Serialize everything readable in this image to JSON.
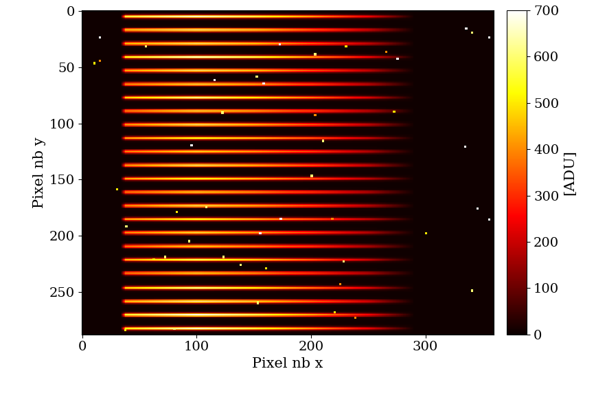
{
  "chart_data": {
    "type": "heatmap",
    "xlabel": "Pixel nb x",
    "ylabel": "Pixel nb y",
    "xlim": [
      -0.5,
      359.5
    ],
    "ylim": [
      287.5,
      -0.5
    ],
    "xticks": [
      0,
      100,
      200,
      300
    ],
    "yticks": [
      0,
      50,
      100,
      150,
      200,
      250
    ],
    "colorbar": {
      "label": "[ADU]",
      "range": [
        0,
        700
      ],
      "ticks": [
        0,
        100,
        200,
        300,
        400,
        500,
        600,
        700
      ]
    },
    "background": 8,
    "trace_x": [
      34,
      38,
      100,
      150,
      200,
      250,
      270,
      290
    ],
    "traces": [
      {
        "y": 5,
        "values": [
          0,
          550,
          650,
          560,
          420,
          230,
          120,
          0
        ]
      },
      {
        "y": 17,
        "values": [
          0,
          520,
          620,
          540,
          400,
          220,
          110,
          0
        ]
      },
      {
        "y": 29,
        "values": [
          0,
          500,
          600,
          520,
          380,
          210,
          110,
          0
        ]
      },
      {
        "y": 41,
        "values": [
          0,
          520,
          650,
          560,
          420,
          230,
          120,
          0
        ]
      },
      {
        "y": 53,
        "values": [
          0,
          480,
          600,
          520,
          380,
          210,
          100,
          0
        ]
      },
      {
        "y": 65,
        "values": [
          0,
          450,
          560,
          480,
          360,
          200,
          100,
          0
        ]
      },
      {
        "y": 77,
        "values": [
          0,
          470,
          600,
          500,
          380,
          210,
          100,
          0
        ]
      },
      {
        "y": 89,
        "values": [
          0,
          440,
          560,
          480,
          360,
          200,
          100,
          0
        ]
      },
      {
        "y": 101,
        "values": [
          0,
          460,
          600,
          500,
          380,
          210,
          100,
          0
        ]
      },
      {
        "y": 113,
        "values": [
          0,
          420,
          520,
          450,
          340,
          190,
          90,
          0
        ]
      },
      {
        "y": 125,
        "values": [
          0,
          430,
          540,
          460,
          350,
          190,
          90,
          0
        ]
      },
      {
        "y": 137,
        "values": [
          0,
          460,
          600,
          500,
          380,
          210,
          100,
          0
        ]
      },
      {
        "y": 149,
        "values": [
          0,
          420,
          520,
          440,
          330,
          180,
          90,
          0
        ]
      },
      {
        "y": 161,
        "values": [
          0,
          430,
          540,
          460,
          340,
          190,
          90,
          0
        ]
      },
      {
        "y": 173,
        "values": [
          0,
          450,
          580,
          490,
          370,
          200,
          100,
          0
        ]
      },
      {
        "y": 185,
        "values": [
          0,
          420,
          520,
          440,
          330,
          180,
          90,
          0
        ]
      },
      {
        "y": 197,
        "values": [
          0,
          440,
          560,
          470,
          350,
          190,
          90,
          0
        ]
      },
      {
        "y": 209,
        "values": [
          0,
          420,
          530,
          450,
          340,
          180,
          90,
          0
        ]
      },
      {
        "y": 221,
        "values": [
          0,
          440,
          560,
          470,
          350,
          190,
          90,
          0
        ]
      },
      {
        "y": 233,
        "values": [
          0,
          430,
          540,
          460,
          340,
          190,
          90,
          0
        ]
      },
      {
        "y": 246,
        "values": [
          0,
          480,
          600,
          510,
          380,
          210,
          100,
          0
        ]
      },
      {
        "y": 258,
        "values": [
          0,
          520,
          650,
          550,
          410,
          230,
          110,
          0
        ]
      },
      {
        "y": 270,
        "values": [
          0,
          540,
          680,
          570,
          430,
          240,
          120,
          0
        ]
      },
      {
        "y": 282,
        "values": [
          0,
          520,
          650,
          550,
          410,
          230,
          110,
          0
        ]
      }
    ],
    "hits": [
      [
        15,
        23,
        700
      ],
      [
        55,
        31,
        600
      ],
      [
        172,
        29,
        700
      ],
      [
        203,
        38,
        600
      ],
      [
        230,
        31,
        500
      ],
      [
        265,
        36,
        400
      ],
      [
        275,
        42,
        700
      ],
      [
        10,
        46,
        500
      ],
      [
        15,
        44,
        400
      ],
      [
        335,
        15,
        700
      ],
      [
        340,
        19,
        600
      ],
      [
        355,
        23,
        700
      ],
      [
        115,
        61,
        700
      ],
      [
        152,
        58,
        600
      ],
      [
        158,
        64,
        700
      ],
      [
        122,
        90,
        600
      ],
      [
        203,
        92,
        400
      ],
      [
        272,
        89,
        500
      ],
      [
        210,
        115,
        600
      ],
      [
        95,
        119,
        700
      ],
      [
        200,
        146,
        600
      ],
      [
        334,
        120,
        700
      ],
      [
        30,
        158,
        500
      ],
      [
        108,
        174,
        600
      ],
      [
        82,
        178,
        500
      ],
      [
        173,
        184,
        700
      ],
      [
        218,
        184,
        400
      ],
      [
        345,
        175,
        700
      ],
      [
        355,
        185,
        700
      ],
      [
        38,
        191,
        600
      ],
      [
        155,
        197,
        700
      ],
      [
        300,
        197,
        500
      ],
      [
        93,
        204,
        600
      ],
      [
        62,
        220,
        500
      ],
      [
        72,
        218,
        600
      ],
      [
        123,
        218,
        600
      ],
      [
        138,
        225,
        600
      ],
      [
        160,
        228,
        500
      ],
      [
        228,
        222,
        600
      ],
      [
        225,
        242,
        400
      ],
      [
        340,
        248,
        600
      ],
      [
        153,
        259,
        600
      ],
      [
        220,
        267,
        500
      ],
      [
        238,
        272,
        400
      ],
      [
        80,
        282,
        600
      ],
      [
        37,
        283,
        500
      ]
    ]
  }
}
